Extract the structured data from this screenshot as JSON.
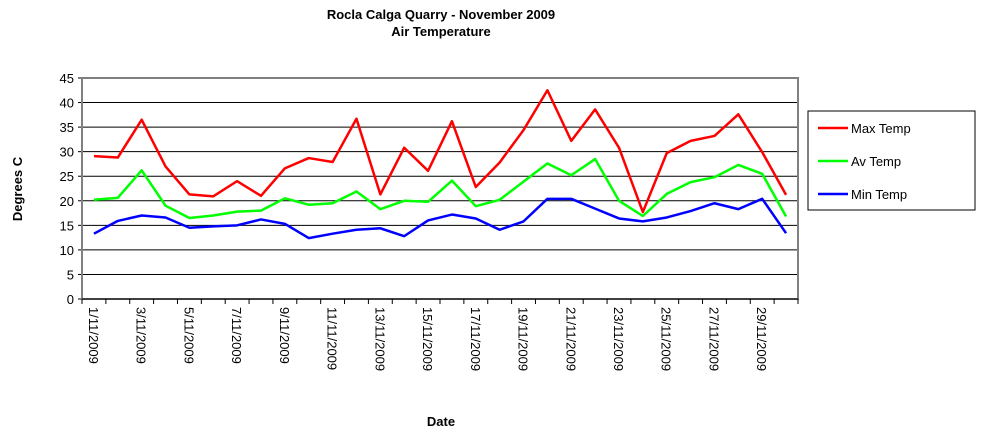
{
  "chart_data": {
    "type": "line",
    "title": "Rocla Calga Quarry - November 2009",
    "subtitle": "Air Temperature",
    "x_label": "Date",
    "y_label": "Degrees C",
    "categories": [
      "1/11/2009",
      null,
      "3/11/2009",
      null,
      "5/11/2009",
      null,
      "7/11/2009",
      null,
      "9/11/2009",
      null,
      "11/11/2009",
      null,
      "13/11/2009",
      null,
      "15/11/2009",
      null,
      "17/11/2009",
      null,
      "19/11/2009",
      null,
      "21/11/2009",
      null,
      "23/11/2009",
      null,
      "25/11/2009",
      null,
      "27/11/2009",
      null,
      "29/11/2009",
      null
    ],
    "series": [
      {
        "name": "Max Temp",
        "color": "#ff0000",
        "values": [
          29.1,
          28.8,
          36.5,
          27,
          21.3,
          20.9,
          24,
          21,
          26.6,
          28.7,
          27.9,
          36.7,
          21.3,
          30.8,
          26.1,
          36.2,
          22.8,
          27.8,
          34.4,
          42.5,
          32.2,
          38.6,
          30.8,
          17.7,
          29.7,
          32.2,
          33.2,
          37.6,
          29.9,
          21.2
        ]
      },
      {
        "name": "Av Temp",
        "color": "#00ff00",
        "values": [
          20.2,
          20.6,
          26.2,
          19,
          16.5,
          17,
          17.8,
          18,
          20.5,
          19.2,
          19.5,
          21.9,
          18.3,
          20,
          19.8,
          24.1,
          18.9,
          20.2,
          23.9,
          27.6,
          25.2,
          28.5,
          20,
          16.9,
          21.4,
          23.8,
          24.8,
          27.3,
          25.5,
          16.8
        ]
      },
      {
        "name": "Min Temp",
        "color": "#0000ff",
        "values": [
          13.3,
          15.9,
          17,
          16.6,
          14.5,
          14.8,
          15,
          16.2,
          15.3,
          12.4,
          13.3,
          14.1,
          14.4,
          12.8,
          16,
          17.2,
          16.4,
          14.1,
          15.8,
          20.4,
          20.4,
          18.4,
          16.4,
          15.8,
          16.6,
          17.9,
          19.5,
          18.3,
          20.4,
          13.4
        ]
      }
    ],
    "ylim": [
      0,
      45
    ],
    "yticks": [
      0,
      5,
      10,
      15,
      20,
      25,
      30,
      35,
      40,
      45
    ],
    "grid": true,
    "legend": "right"
  }
}
